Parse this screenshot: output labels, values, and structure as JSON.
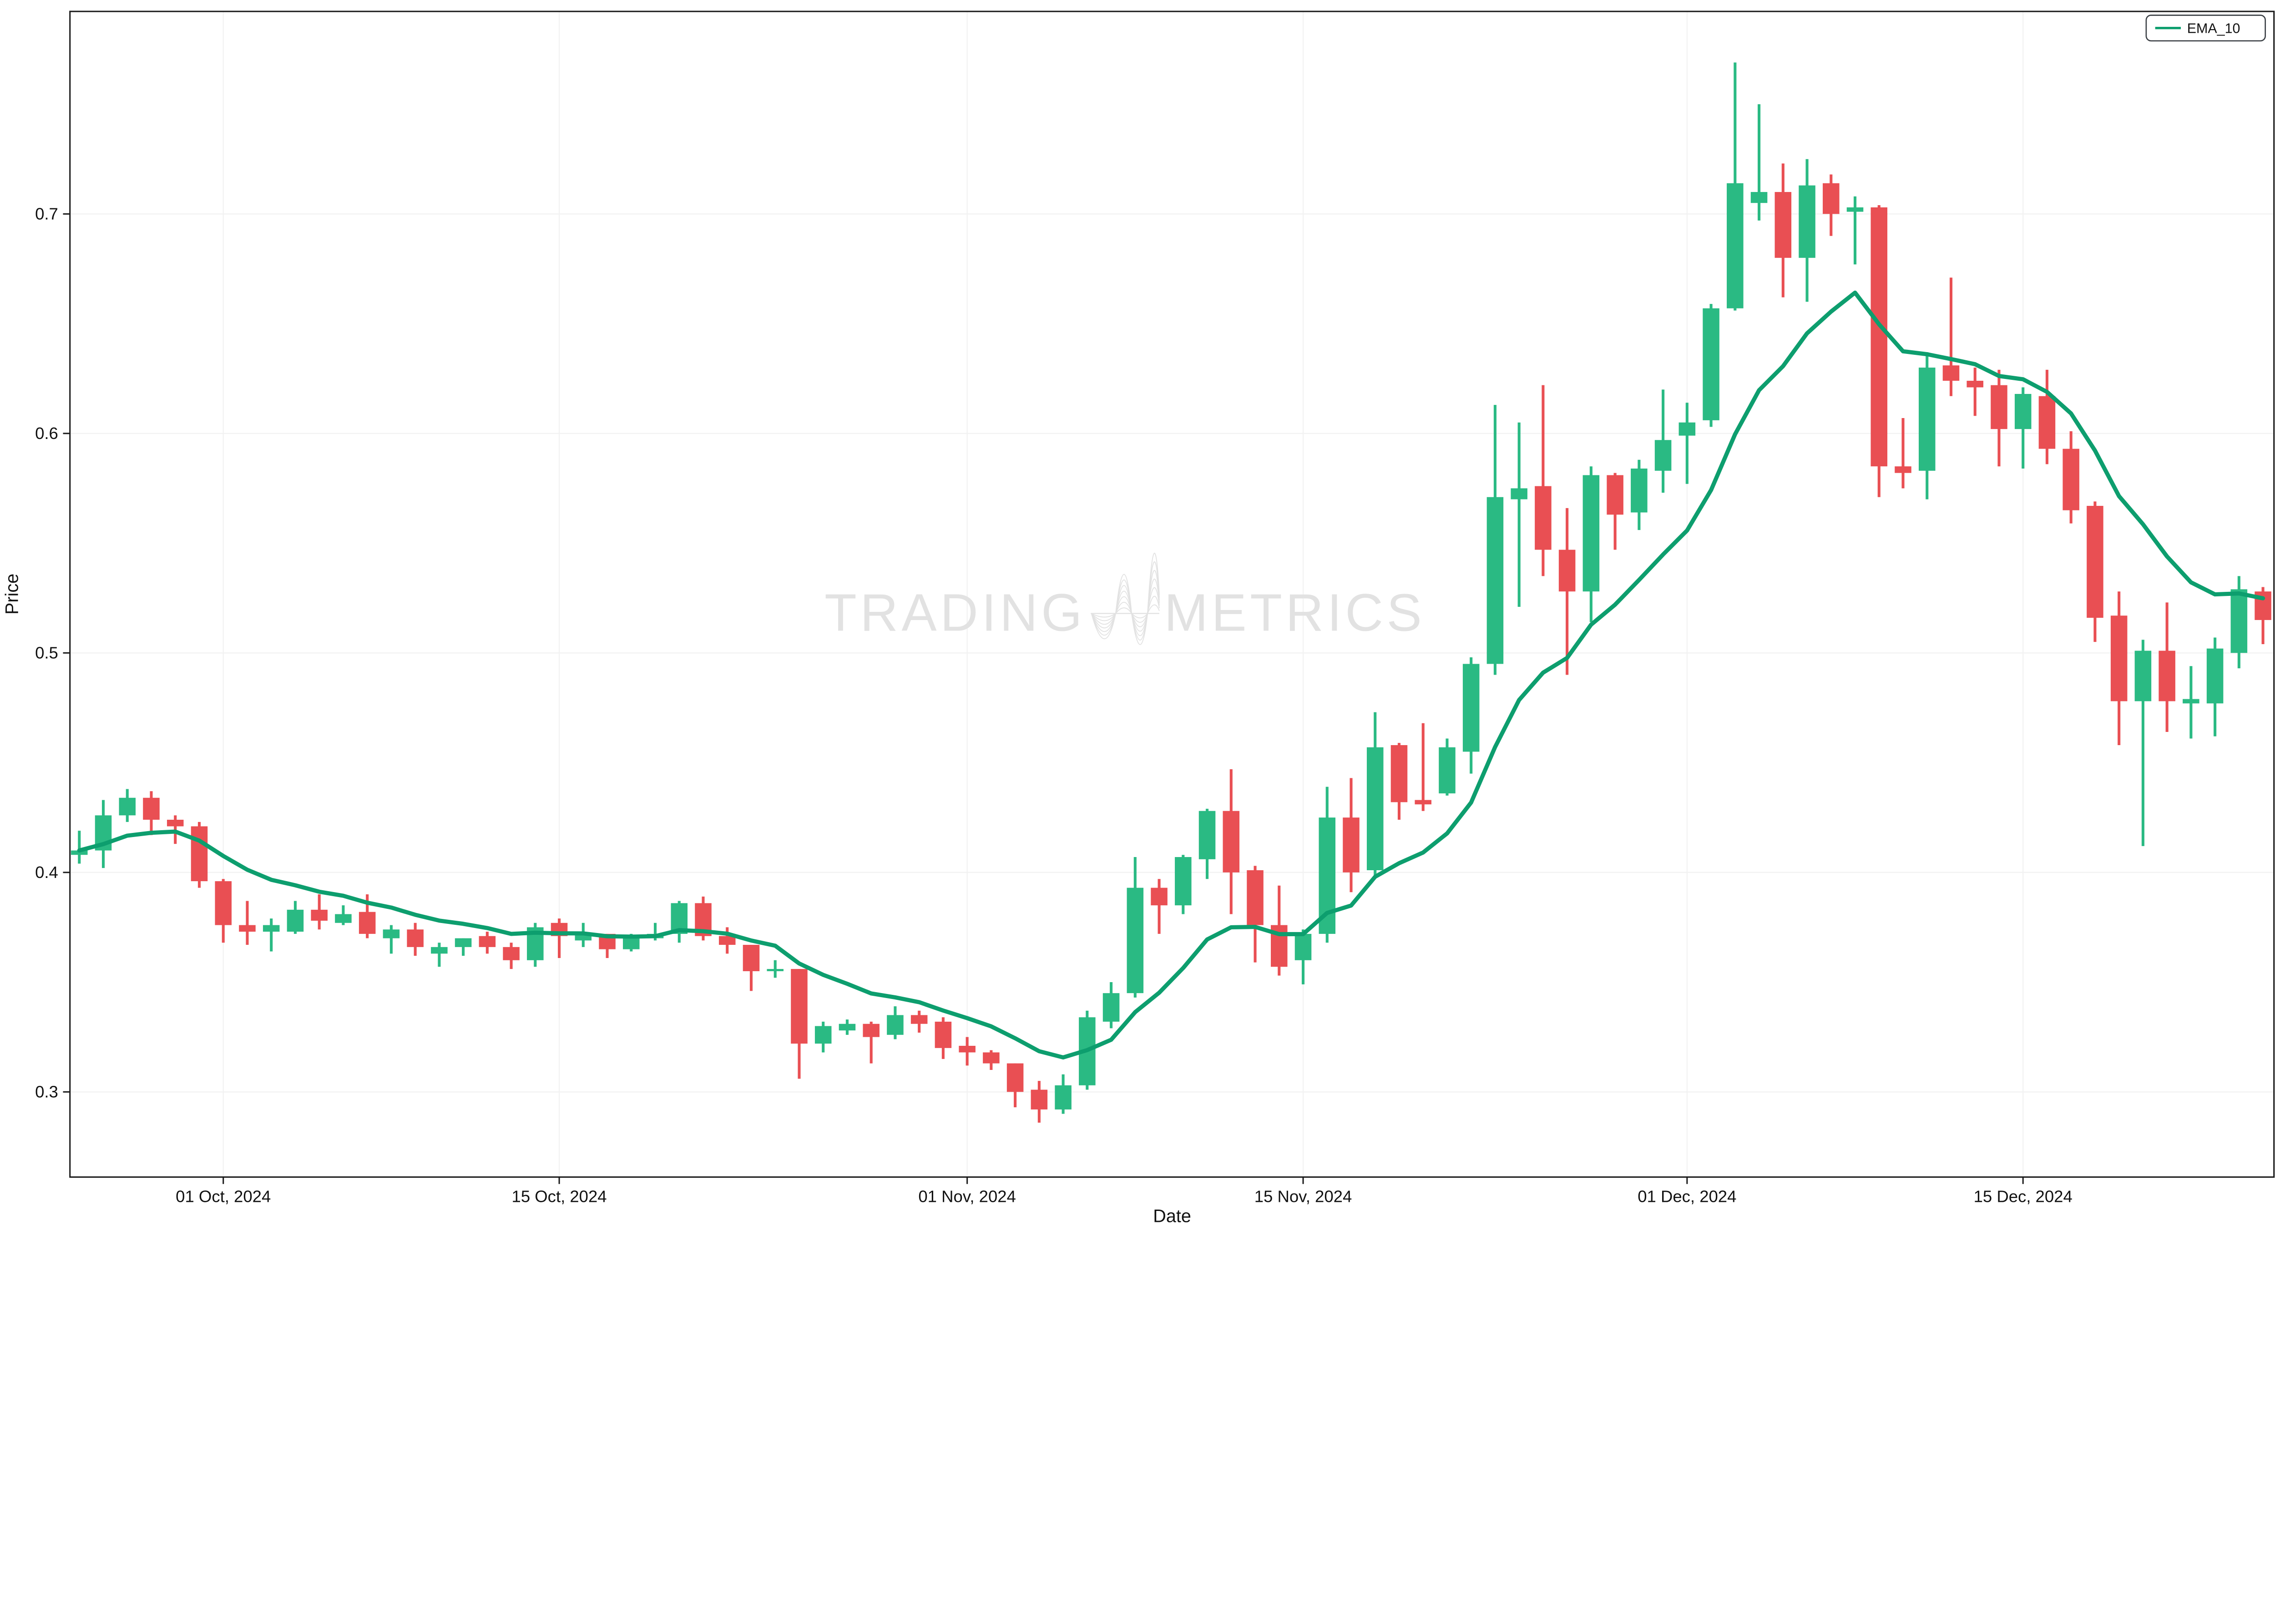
{
  "colors": {
    "up": "#2ABA83",
    "down": "#E94F53",
    "ema": "#0D9E6E",
    "grid": "#F2F2F2",
    "axis": "#1A1A1A",
    "tick_label": "#111111",
    "watermark": "#E2E2E2",
    "legend_border": "#3C4146",
    "background": "#FFFFFF"
  },
  "legend": {
    "label": "EMA_10",
    "position": "top-right"
  },
  "watermark": {
    "left_text": "TRADING",
    "right_text": "METRICS"
  },
  "axes": {
    "x_title": "Date",
    "y_title": "Price",
    "y_ticks": [
      "0.3",
      "0.4",
      "0.5",
      "0.6",
      "0.7"
    ],
    "x_tick_indices": [
      6,
      20,
      37,
      51,
      67,
      81
    ],
    "x_tick_labels": [
      "01 Oct, 2024",
      "15 Oct, 2024",
      "01 Nov, 2024",
      "15 Nov, 2024",
      "01 Dec, 2024",
      "15 Dec, 2024"
    ]
  },
  "chart_data": {
    "type": "candlestick",
    "title": "",
    "xlabel": "Date",
    "ylabel": "Price",
    "ylim": [
      0.261,
      0.792
    ],
    "grid": true,
    "legend_position": "top-right",
    "overlays": [
      {
        "name": "EMA_10",
        "formula": "ema",
        "period": 10,
        "source": "close"
      }
    ],
    "candles": [
      {
        "date": "2024-09-25",
        "o": 0.408,
        "h": 0.419,
        "l": 0.404,
        "c": 0.41
      },
      {
        "date": "2024-09-26",
        "o": 0.41,
        "h": 0.433,
        "l": 0.402,
        "c": 0.426
      },
      {
        "date": "2024-09-27",
        "o": 0.426,
        "h": 0.438,
        "l": 0.423,
        "c": 0.434
      },
      {
        "date": "2024-09-28",
        "o": 0.434,
        "h": 0.437,
        "l": 0.417,
        "c": 0.424
      },
      {
        "date": "2024-09-29",
        "o": 0.424,
        "h": 0.426,
        "l": 0.413,
        "c": 0.421
      },
      {
        "date": "2024-09-30",
        "o": 0.421,
        "h": 0.423,
        "l": 0.393,
        "c": 0.396
      },
      {
        "date": "2024-10-01",
        "o": 0.396,
        "h": 0.397,
        "l": 0.368,
        "c": 0.376
      },
      {
        "date": "2024-10-02",
        "o": 0.376,
        "h": 0.387,
        "l": 0.367,
        "c": 0.373
      },
      {
        "date": "2024-10-03",
        "o": 0.373,
        "h": 0.379,
        "l": 0.364,
        "c": 0.376
      },
      {
        "date": "2024-10-04",
        "o": 0.373,
        "h": 0.387,
        "l": 0.372,
        "c": 0.383
      },
      {
        "date": "2024-10-05",
        "o": 0.383,
        "h": 0.39,
        "l": 0.374,
        "c": 0.378
      },
      {
        "date": "2024-10-06",
        "o": 0.377,
        "h": 0.385,
        "l": 0.376,
        "c": 0.381
      },
      {
        "date": "2024-10-07",
        "o": 0.382,
        "h": 0.39,
        "l": 0.37,
        "c": 0.372
      },
      {
        "date": "2024-10-08",
        "o": 0.37,
        "h": 0.376,
        "l": 0.363,
        "c": 0.374
      },
      {
        "date": "2024-10-09",
        "o": 0.374,
        "h": 0.377,
        "l": 0.362,
        "c": 0.366
      },
      {
        "date": "2024-10-10",
        "o": 0.363,
        "h": 0.368,
        "l": 0.357,
        "c": 0.366
      },
      {
        "date": "2024-10-11",
        "o": 0.366,
        "h": 0.37,
        "l": 0.362,
        "c": 0.37
      },
      {
        "date": "2024-10-12",
        "o": 0.371,
        "h": 0.373,
        "l": 0.363,
        "c": 0.366
      },
      {
        "date": "2024-10-13",
        "o": 0.366,
        "h": 0.368,
        "l": 0.356,
        "c": 0.36
      },
      {
        "date": "2024-10-14",
        "o": 0.36,
        "h": 0.377,
        "l": 0.357,
        "c": 0.375
      },
      {
        "date": "2024-10-15",
        "o": 0.377,
        "h": 0.379,
        "l": 0.361,
        "c": 0.371
      },
      {
        "date": "2024-10-16",
        "o": 0.369,
        "h": 0.377,
        "l": 0.366,
        "c": 0.372
      },
      {
        "date": "2024-10-17",
        "o": 0.372,
        "h": 0.372,
        "l": 0.361,
        "c": 0.365
      },
      {
        "date": "2024-10-18",
        "o": 0.365,
        "h": 0.372,
        "l": 0.364,
        "c": 0.37
      },
      {
        "date": "2024-10-19",
        "o": 0.37,
        "h": 0.377,
        "l": 0.369,
        "c": 0.372
      },
      {
        "date": "2024-10-20",
        "o": 0.372,
        "h": 0.387,
        "l": 0.368,
        "c": 0.386
      },
      {
        "date": "2024-10-21",
        "o": 0.386,
        "h": 0.389,
        "l": 0.369,
        "c": 0.371
      },
      {
        "date": "2024-10-22",
        "o": 0.371,
        "h": 0.375,
        "l": 0.363,
        "c": 0.367
      },
      {
        "date": "2024-10-23",
        "o": 0.367,
        "h": 0.367,
        "l": 0.346,
        "c": 0.355
      },
      {
        "date": "2024-10-24",
        "o": 0.355,
        "h": 0.36,
        "l": 0.352,
        "c": 0.356
      },
      {
        "date": "2024-10-25",
        "o": 0.356,
        "h": 0.356,
        "l": 0.306,
        "c": 0.322
      },
      {
        "date": "2024-10-26",
        "o": 0.322,
        "h": 0.332,
        "l": 0.318,
        "c": 0.33
      },
      {
        "date": "2024-10-27",
        "o": 0.328,
        "h": 0.333,
        "l": 0.326,
        "c": 0.331
      },
      {
        "date": "2024-10-28",
        "o": 0.331,
        "h": 0.332,
        "l": 0.313,
        "c": 0.325
      },
      {
        "date": "2024-10-29",
        "o": 0.326,
        "h": 0.339,
        "l": 0.324,
        "c": 0.335
      },
      {
        "date": "2024-10-30",
        "o": 0.335,
        "h": 0.337,
        "l": 0.327,
        "c": 0.331
      },
      {
        "date": "2024-10-31",
        "o": 0.332,
        "h": 0.334,
        "l": 0.315,
        "c": 0.32
      },
      {
        "date": "2024-11-01",
        "o": 0.321,
        "h": 0.325,
        "l": 0.312,
        "c": 0.318
      },
      {
        "date": "2024-11-02",
        "o": 0.318,
        "h": 0.319,
        "l": 0.31,
        "c": 0.313
      },
      {
        "date": "2024-11-03",
        "o": 0.313,
        "h": 0.313,
        "l": 0.293,
        "c": 0.3
      },
      {
        "date": "2024-11-04",
        "o": 0.301,
        "h": 0.305,
        "l": 0.286,
        "c": 0.292
      },
      {
        "date": "2024-11-05",
        "o": 0.292,
        "h": 0.308,
        "l": 0.29,
        "c": 0.303
      },
      {
        "date": "2024-11-06",
        "o": 0.303,
        "h": 0.337,
        "l": 0.301,
        "c": 0.334
      },
      {
        "date": "2024-11-07",
        "o": 0.332,
        "h": 0.35,
        "l": 0.329,
        "c": 0.345
      },
      {
        "date": "2024-11-08",
        "o": 0.345,
        "h": 0.407,
        "l": 0.343,
        "c": 0.393
      },
      {
        "date": "2024-11-09",
        "o": 0.393,
        "h": 0.397,
        "l": 0.372,
        "c": 0.385
      },
      {
        "date": "2024-11-10",
        "o": 0.385,
        "h": 0.408,
        "l": 0.381,
        "c": 0.407
      },
      {
        "date": "2024-11-11",
        "o": 0.406,
        "h": 0.429,
        "l": 0.397,
        "c": 0.428
      },
      {
        "date": "2024-11-12",
        "o": 0.428,
        "h": 0.447,
        "l": 0.381,
        "c": 0.4
      },
      {
        "date": "2024-11-13",
        "o": 0.401,
        "h": 0.403,
        "l": 0.359,
        "c": 0.376
      },
      {
        "date": "2024-11-14",
        "o": 0.376,
        "h": 0.394,
        "l": 0.353,
        "c": 0.357
      },
      {
        "date": "2024-11-15",
        "o": 0.36,
        "h": 0.374,
        "l": 0.349,
        "c": 0.372
      },
      {
        "date": "2024-11-16",
        "o": 0.372,
        "h": 0.439,
        "l": 0.368,
        "c": 0.425
      },
      {
        "date": "2024-11-17",
        "o": 0.425,
        "h": 0.443,
        "l": 0.391,
        "c": 0.4
      },
      {
        "date": "2024-11-18",
        "o": 0.401,
        "h": 0.473,
        "l": 0.398,
        "c": 0.457
      },
      {
        "date": "2024-11-19",
        "o": 0.458,
        "h": 0.459,
        "l": 0.424,
        "c": 0.432
      },
      {
        "date": "2024-11-20",
        "o": 0.433,
        "h": 0.468,
        "l": 0.428,
        "c": 0.431
      },
      {
        "date": "2024-11-21",
        "o": 0.436,
        "h": 0.461,
        "l": 0.435,
        "c": 0.457
      },
      {
        "date": "2024-11-22",
        "o": 0.455,
        "h": 0.498,
        "l": 0.445,
        "c": 0.495
      },
      {
        "date": "2024-11-23",
        "o": 0.495,
        "h": 0.613,
        "l": 0.49,
        "c": 0.571
      },
      {
        "date": "2024-11-24",
        "o": 0.57,
        "h": 0.605,
        "l": 0.521,
        "c": 0.575
      },
      {
        "date": "2024-11-25",
        "o": 0.576,
        "h": 0.622,
        "l": 0.535,
        "c": 0.547
      },
      {
        "date": "2024-11-26",
        "o": 0.547,
        "h": 0.566,
        "l": 0.49,
        "c": 0.528
      },
      {
        "date": "2024-11-27",
        "o": 0.528,
        "h": 0.585,
        "l": 0.514,
        "c": 0.581
      },
      {
        "date": "2024-11-28",
        "o": 0.581,
        "h": 0.582,
        "l": 0.547,
        "c": 0.563
      },
      {
        "date": "2024-11-29",
        "o": 0.564,
        "h": 0.588,
        "l": 0.556,
        "c": 0.584
      },
      {
        "date": "2024-11-30",
        "o": 0.583,
        "h": 0.62,
        "l": 0.573,
        "c": 0.597
      },
      {
        "date": "2024-12-01",
        "o": 0.599,
        "h": 0.614,
        "l": 0.577,
        "c": 0.605
      },
      {
        "date": "2024-12-02",
        "o": 0.606,
        "h": 0.659,
        "l": 0.603,
        "c": 0.657
      },
      {
        "date": "2024-12-03",
        "o": 0.657,
        "h": 0.769,
        "l": 0.656,
        "c": 0.714
      },
      {
        "date": "2024-12-04",
        "o": 0.705,
        "h": 0.75,
        "l": 0.697,
        "c": 0.71
      },
      {
        "date": "2024-12-05",
        "o": 0.71,
        "h": 0.723,
        "l": 0.662,
        "c": 0.68
      },
      {
        "date": "2024-12-06",
        "o": 0.68,
        "h": 0.725,
        "l": 0.66,
        "c": 0.713
      },
      {
        "date": "2024-12-07",
        "o": 0.714,
        "h": 0.718,
        "l": 0.69,
        "c": 0.7
      },
      {
        "date": "2024-12-08",
        "o": 0.701,
        "h": 0.708,
        "l": 0.677,
        "c": 0.703
      },
      {
        "date": "2024-12-09",
        "o": 0.703,
        "h": 0.704,
        "l": 0.571,
        "c": 0.585
      },
      {
        "date": "2024-12-10",
        "o": 0.585,
        "h": 0.607,
        "l": 0.575,
        "c": 0.582
      },
      {
        "date": "2024-12-11",
        "o": 0.583,
        "h": 0.637,
        "l": 0.57,
        "c": 0.63
      },
      {
        "date": "2024-12-12",
        "o": 0.631,
        "h": 0.671,
        "l": 0.617,
        "c": 0.624
      },
      {
        "date": "2024-12-13",
        "o": 0.624,
        "h": 0.63,
        "l": 0.608,
        "c": 0.621
      },
      {
        "date": "2024-12-14",
        "o": 0.622,
        "h": 0.629,
        "l": 0.585,
        "c": 0.602
      },
      {
        "date": "2024-12-15",
        "o": 0.602,
        "h": 0.621,
        "l": 0.584,
        "c": 0.618
      },
      {
        "date": "2024-12-16",
        "o": 0.617,
        "h": 0.629,
        "l": 0.586,
        "c": 0.593
      },
      {
        "date": "2024-12-17",
        "o": 0.593,
        "h": 0.601,
        "l": 0.559,
        "c": 0.565
      },
      {
        "date": "2024-12-18",
        "o": 0.567,
        "h": 0.569,
        "l": 0.505,
        "c": 0.516
      },
      {
        "date": "2024-12-19",
        "o": 0.517,
        "h": 0.528,
        "l": 0.458,
        "c": 0.478
      },
      {
        "date": "2024-12-20",
        "o": 0.478,
        "h": 0.506,
        "l": 0.412,
        "c": 0.501
      },
      {
        "date": "2024-12-21",
        "o": 0.501,
        "h": 0.523,
        "l": 0.464,
        "c": 0.478
      },
      {
        "date": "2024-12-22",
        "o": 0.477,
        "h": 0.494,
        "l": 0.461,
        "c": 0.479
      },
      {
        "date": "2024-12-23",
        "o": 0.477,
        "h": 0.507,
        "l": 0.462,
        "c": 0.502
      },
      {
        "date": "2024-12-24",
        "o": 0.5,
        "h": 0.535,
        "l": 0.493,
        "c": 0.529
      },
      {
        "date": "2024-12-25",
        "o": 0.528,
        "h": 0.53,
        "l": 0.504,
        "c": 0.515
      }
    ]
  },
  "layout_note": "price axis 0.3-0.7 gridlines, date ticks 01 Oct 2024 through 15 Dec 2024"
}
